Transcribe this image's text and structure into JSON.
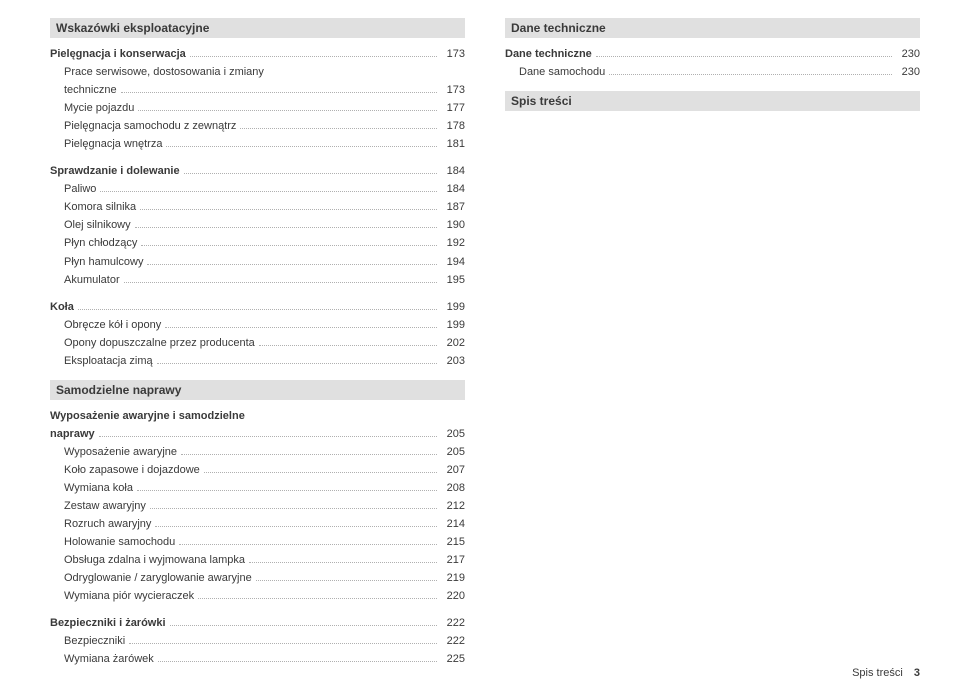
{
  "col1": {
    "h1": "Wskazówki eksploatacyjne",
    "g1": {
      "title": "Pielęgnacja i konserwacja",
      "title_pg": "173",
      "items": [
        {
          "label": "Prace serwisowe, dostosowania i zmiany techniczne",
          "pg": "173"
        },
        {
          "label": "Mycie pojazdu",
          "pg": "177"
        },
        {
          "label": "Pielęgnacja samochodu z zewnątrz",
          "pg": "178"
        },
        {
          "label": "Pielęgnacja wnętrza",
          "pg": "181"
        }
      ]
    },
    "g2": {
      "title": "Sprawdzanie i dolewanie",
      "title_pg": "184",
      "items": [
        {
          "label": "Paliwo",
          "pg": "184"
        },
        {
          "label": "Komora silnika",
          "pg": "187"
        },
        {
          "label": "Olej silnikowy",
          "pg": "190"
        },
        {
          "label": "Płyn chłodzący",
          "pg": "192"
        },
        {
          "label": "Płyn hamulcowy",
          "pg": "194"
        },
        {
          "label": "Akumulator",
          "pg": "195"
        }
      ]
    },
    "g3": {
      "title": "Koła",
      "title_pg": "199",
      "items": [
        {
          "label": "Obręcze kół i opony",
          "pg": "199"
        },
        {
          "label": "Opony dopuszczalne przez producenta",
          "pg": "202"
        },
        {
          "label": "Eksploatacja zimą",
          "pg": "203"
        }
      ]
    },
    "h2": "Samodzielne naprawy",
    "g4": {
      "title": "Wyposażenie awaryjne i samodzielne naprawy",
      "title_pg": "205",
      "items": [
        {
          "label": "Wyposażenie awaryjne",
          "pg": "205"
        },
        {
          "label": "Koło zapasowe i dojazdowe",
          "pg": "207"
        },
        {
          "label": "Wymiana koła",
          "pg": "208"
        },
        {
          "label": "Zestaw awaryjny",
          "pg": "212"
        },
        {
          "label": "Rozruch awaryjny",
          "pg": "214"
        },
        {
          "label": "Holowanie samochodu",
          "pg": "215"
        },
        {
          "label": "Obsługa zdalna i wyjmowana lampka",
          "pg": "217"
        },
        {
          "label": "Odryglowanie / zaryglowanie awaryjne",
          "pg": "219"
        },
        {
          "label": "Wymiana piór wycieraczek",
          "pg": "220"
        }
      ]
    },
    "g5": {
      "title": "Bezpieczniki i żarówki",
      "title_pg": "222",
      "items": [
        {
          "label": "Bezpieczniki",
          "pg": "222"
        },
        {
          "label": "Wymiana żarówek",
          "pg": "225"
        }
      ]
    }
  },
  "col2": {
    "h1": "Dane techniczne",
    "g1": {
      "title": "Dane techniczne",
      "title_pg": "230",
      "items": [
        {
          "label": "Dane samochodu",
          "pg": "230"
        }
      ]
    },
    "h2": "Spis treści"
  },
  "footer": {
    "label": "Spis treści",
    "pg": "3"
  }
}
